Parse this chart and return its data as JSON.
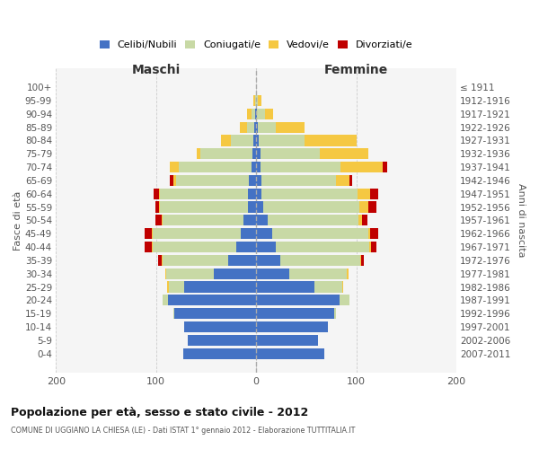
{
  "age_groups": [
    "100+",
    "95-99",
    "90-94",
    "85-89",
    "80-84",
    "75-79",
    "70-74",
    "65-69",
    "60-64",
    "55-59",
    "50-54",
    "45-49",
    "40-44",
    "35-39",
    "30-34",
    "25-29",
    "20-24",
    "15-19",
    "10-14",
    "5-9",
    "0-4"
  ],
  "birth_years": [
    "≤ 1911",
    "1912-1916",
    "1917-1921",
    "1922-1926",
    "1927-1931",
    "1932-1936",
    "1937-1941",
    "1942-1946",
    "1947-1951",
    "1952-1956",
    "1957-1961",
    "1962-1966",
    "1967-1971",
    "1972-1976",
    "1977-1981",
    "1982-1986",
    "1987-1991",
    "1992-1996",
    "1997-2001",
    "2002-2006",
    "2007-2011"
  ],
  "colors": {
    "celibi": "#4472C4",
    "coniugati": "#c8d9a5",
    "vedovi": "#F5C842",
    "divorziati": "#C00000",
    "background": "#f5f5f5"
  },
  "maschi": {
    "celibi": [
      0,
      0,
      1,
      2,
      3,
      4,
      5,
      7,
      8,
      8,
      13,
      15,
      20,
      28,
      42,
      72,
      88,
      82,
      72,
      68,
      73
    ],
    "coniugati": [
      0,
      1,
      4,
      7,
      22,
      52,
      72,
      73,
      88,
      88,
      80,
      88,
      83,
      65,
      48,
      15,
      5,
      1,
      0,
      0,
      0
    ],
    "vedovi": [
      0,
      2,
      4,
      7,
      10,
      3,
      9,
      3,
      1,
      1,
      1,
      1,
      1,
      1,
      1,
      2,
      0,
      0,
      0,
      0,
      0
    ],
    "divorziati": [
      0,
      0,
      0,
      0,
      0,
      0,
      0,
      3,
      5,
      4,
      7,
      7,
      7,
      4,
      0,
      0,
      0,
      0,
      0,
      0,
      0
    ]
  },
  "femmine": {
    "celibi": [
      0,
      0,
      1,
      2,
      3,
      4,
      4,
      5,
      5,
      7,
      12,
      16,
      20,
      24,
      33,
      58,
      83,
      78,
      72,
      62,
      68
    ],
    "coniugati": [
      0,
      2,
      8,
      18,
      45,
      60,
      80,
      75,
      96,
      96,
      90,
      96,
      93,
      80,
      58,
      28,
      10,
      2,
      0,
      0,
      0
    ],
    "vedovi": [
      0,
      3,
      8,
      28,
      52,
      48,
      42,
      13,
      13,
      9,
      4,
      2,
      2,
      1,
      1,
      1,
      0,
      0,
      0,
      0,
      0
    ],
    "divorziati": [
      0,
      0,
      0,
      0,
      0,
      0,
      5,
      3,
      8,
      8,
      5,
      8,
      5,
      3,
      0,
      0,
      0,
      0,
      0,
      0,
      0
    ]
  },
  "title": "Popolazione per età, sesso e stato civile - 2012",
  "subtitle": "COMUNE DI UGGIANO LA CHIESA (LE) - Dati ISTAT 1° gennaio 2012 - Elaborazione TUTTITALIA.IT",
  "ylabel_left": "Fasce di età",
  "ylabel_right": "Anni di nascita",
  "header_maschi": "Maschi",
  "header_femmine": "Femmine",
  "xlim": 200,
  "xticks": [
    -200,
    -100,
    0,
    100,
    200
  ],
  "xtick_labels": [
    "200",
    "100",
    "0",
    "100",
    "200"
  ],
  "legend_labels": [
    "Celibi/Nubili",
    "Coniugati/e",
    "Vedovi/e",
    "Divorziati/e"
  ]
}
